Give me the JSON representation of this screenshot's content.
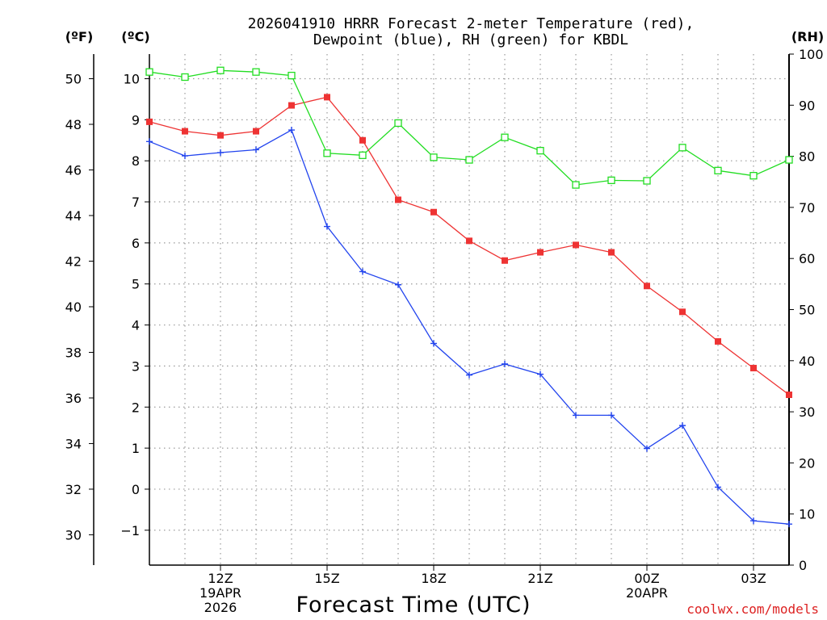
{
  "chart_data": {
    "type": "line",
    "title": "2026041910 HRRR Forecast 2-meter Temperature (red),",
    "subtitle": "Dewpoint (blue), RH (green) for KBDL",
    "xlabel": "Forecast Time (UTC)",
    "left_outer_unit": "(ºF)",
    "left_inner_unit": "(ºC)",
    "right_unit": "(RH)",
    "watermark": "coolwx.com/models",
    "x_hours": [
      10,
      11,
      12,
      13,
      14,
      15,
      16,
      17,
      18,
      19,
      20,
      21,
      22,
      23,
      24,
      25,
      26,
      27,
      28
    ],
    "xlim": [
      10,
      28
    ],
    "x_ticks": [
      {
        "hour": 12,
        "lines": [
          "12Z",
          "19APR",
          "2026"
        ]
      },
      {
        "hour": 15,
        "lines": [
          "15Z"
        ]
      },
      {
        "hour": 18,
        "lines": [
          "18Z"
        ]
      },
      {
        "hour": 21,
        "lines": [
          "21Z"
        ]
      },
      {
        "hour": 24,
        "lines": [
          "00Z",
          "20APR"
        ]
      },
      {
        "hour": 27,
        "lines": [
          "03Z"
        ]
      }
    ],
    "celsius_axis": {
      "range": [
        -1.85,
        10.6
      ],
      "ticks": [
        -1,
        0,
        1,
        2,
        3,
        4,
        5,
        6,
        7,
        8,
        9,
        10
      ]
    },
    "fahrenheit_axis": {
      "ticks": [
        30,
        32,
        34,
        36,
        38,
        40,
        42,
        44,
        46,
        48,
        50
      ]
    },
    "rh_axis": {
      "range": [
        0,
        100
      ],
      "ticks": [
        0,
        10,
        20,
        30,
        40,
        50,
        60,
        70,
        80,
        90,
        100
      ]
    },
    "colors": {
      "temperature": "#ee3333",
      "dewpoint": "#2244ee",
      "rh": "#22dd22",
      "grid": "#9a9a9a",
      "watermark": "#dd2222"
    },
    "series": [
      {
        "name": "Temperature",
        "unit": "C",
        "color": "#ee3333",
        "marker": "filled-square",
        "values": [
          8.95,
          8.72,
          8.62,
          8.72,
          9.35,
          9.55,
          8.5,
          7.05,
          6.75,
          6.05,
          5.57,
          5.77,
          5.95,
          5.77,
          4.95,
          4.32,
          3.6,
          2.95,
          2.3
        ]
      },
      {
        "name": "Dewpoint",
        "unit": "C",
        "color": "#2244ee",
        "marker": "plus",
        "values": [
          8.47,
          8.12,
          8.2,
          8.27,
          8.75,
          6.4,
          5.3,
          4.98,
          3.55,
          2.78,
          3.05,
          2.8,
          1.8,
          1.8,
          0.99,
          1.55,
          0.05,
          -0.77,
          -0.85
        ]
      },
      {
        "name": "RH",
        "unit": "%",
        "color": "#22dd22",
        "marker": "open-square",
        "values": [
          96.5,
          95.5,
          96.8,
          96.5,
          95.8,
          80.6,
          80.2,
          86.5,
          79.8,
          79.3,
          83.7,
          81.1,
          74.4,
          75.3,
          75.2,
          81.7,
          77.2,
          76.2,
          79.3
        ]
      }
    ]
  }
}
